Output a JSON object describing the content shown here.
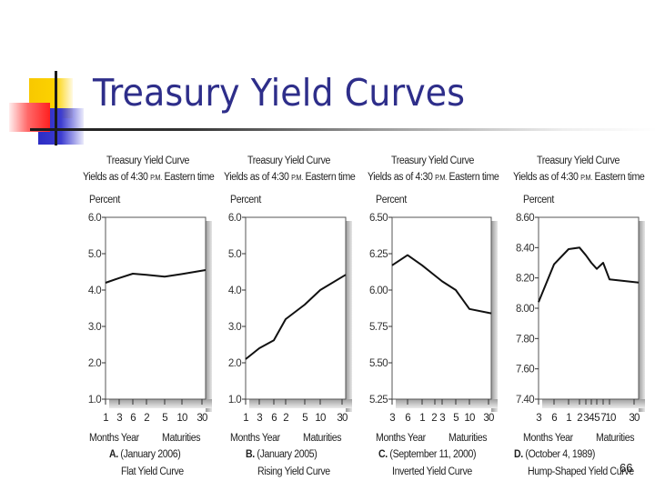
{
  "slide": {
    "title": "Treasury Yield Curves",
    "page_number": "66"
  },
  "chart_data": [
    {
      "type": "line",
      "title": "Treasury Yield Curve",
      "subtitle_pre": "Yields as of 4:30 ",
      "subtitle_pm": "P.M.",
      "subtitle_post": " Eastern time",
      "ylabel": "Percent",
      "xlabel_left": "Months Year",
      "xlabel_right": "Maturities",
      "panel_letter": "A.",
      "date": "(January 2006)",
      "caption": "Flat Yield Curve",
      "ylim": [
        1.0,
        6.0
      ],
      "yticks": [
        "6.0",
        "5.0",
        "4.0",
        "3.0",
        "2.0",
        "1.0"
      ],
      "xticks": [
        "1",
        "3",
        "6",
        "2",
        "5",
        "10",
        "30"
      ],
      "x": [
        "1M",
        "3M",
        "6M",
        "2Y",
        "5Y",
        "10Y",
        "30Y"
      ],
      "values": [
        4.2,
        4.33,
        4.45,
        4.42,
        4.37,
        4.44,
        4.55
      ],
      "grid": false
    },
    {
      "type": "line",
      "title": "Treasury Yield Curve",
      "subtitle_pre": "Yields as of 4:30 ",
      "subtitle_pm": "P.M.",
      "subtitle_post": " Eastern time",
      "ylabel": "Percent",
      "xlabel_left": "Months Year",
      "xlabel_right": "Maturities",
      "panel_letter": "B.",
      "date": "(January 2005)",
      "caption": "Rising Yield Curve",
      "ylim": [
        1.0,
        6.0
      ],
      "yticks": [
        "6.0",
        "5.0",
        "4.0",
        "3.0",
        "2.0",
        "1.0"
      ],
      "xticks": [
        "1",
        "3",
        "6",
        "2",
        "5",
        "10",
        "30"
      ],
      "x": [
        "1M",
        "3M",
        "6M",
        "2Y",
        "5Y",
        "10Y",
        "30Y"
      ],
      "values": [
        2.1,
        2.4,
        2.62,
        3.2,
        3.6,
        4.0,
        4.42
      ],
      "grid": false
    },
    {
      "type": "line",
      "title": "Treasury Yield Curve",
      "subtitle_pre": "Yields as of 4:30 ",
      "subtitle_pm": "P.M.",
      "subtitle_post": " Eastern time",
      "ylabel": "Percent",
      "xlabel_left": "Months Year",
      "xlabel_right": "Maturities",
      "panel_letter": "C.",
      "date": "(September 11, 2000)",
      "caption": "Inverted Yield Curve",
      "ylim": [
        5.25,
        6.5
      ],
      "yticks": [
        "6.50",
        "6.25",
        "6.00",
        "5.75",
        "5.50",
        "5.25"
      ],
      "xticks": [
        "3",
        "6",
        "1",
        "2",
        "3",
        "5",
        "10",
        "30"
      ],
      "x": [
        "3M",
        "6M",
        "1Y",
        "2Y",
        "3Y",
        "5Y",
        "10Y",
        "30Y"
      ],
      "values": [
        6.17,
        6.24,
        6.17,
        6.1,
        6.06,
        6.0,
        5.87,
        5.84
      ],
      "grid": false
    },
    {
      "type": "line",
      "title": "Treasury Yield Curve",
      "subtitle_pre": "Yields as of 4:30 ",
      "subtitle_pm": "P.M.",
      "subtitle_post": " Eastern time",
      "ylabel": "Percent",
      "xlabel_left": "Months Year",
      "xlabel_right": "Maturities",
      "panel_letter": "D.",
      "date": "(October 4, 1989)",
      "caption": "Hump-Shaped Yield Curve",
      "ylim": [
        7.4,
        8.6
      ],
      "yticks": [
        "8.60",
        "8.40",
        "8.20",
        "8.00",
        "7.80",
        "7.60",
        "7.40"
      ],
      "xticks": [
        "3",
        "6",
        "1",
        "2",
        "3",
        "4",
        "5",
        "7",
        "10",
        "30"
      ],
      "x": [
        "3M",
        "6M",
        "1Y",
        "2Y",
        "3Y",
        "4Y",
        "5Y",
        "7Y",
        "10Y",
        "30Y"
      ],
      "values": [
        8.04,
        8.29,
        8.39,
        8.4,
        8.35,
        8.3,
        8.26,
        8.3,
        8.19,
        8.17
      ],
      "grid": false
    }
  ]
}
